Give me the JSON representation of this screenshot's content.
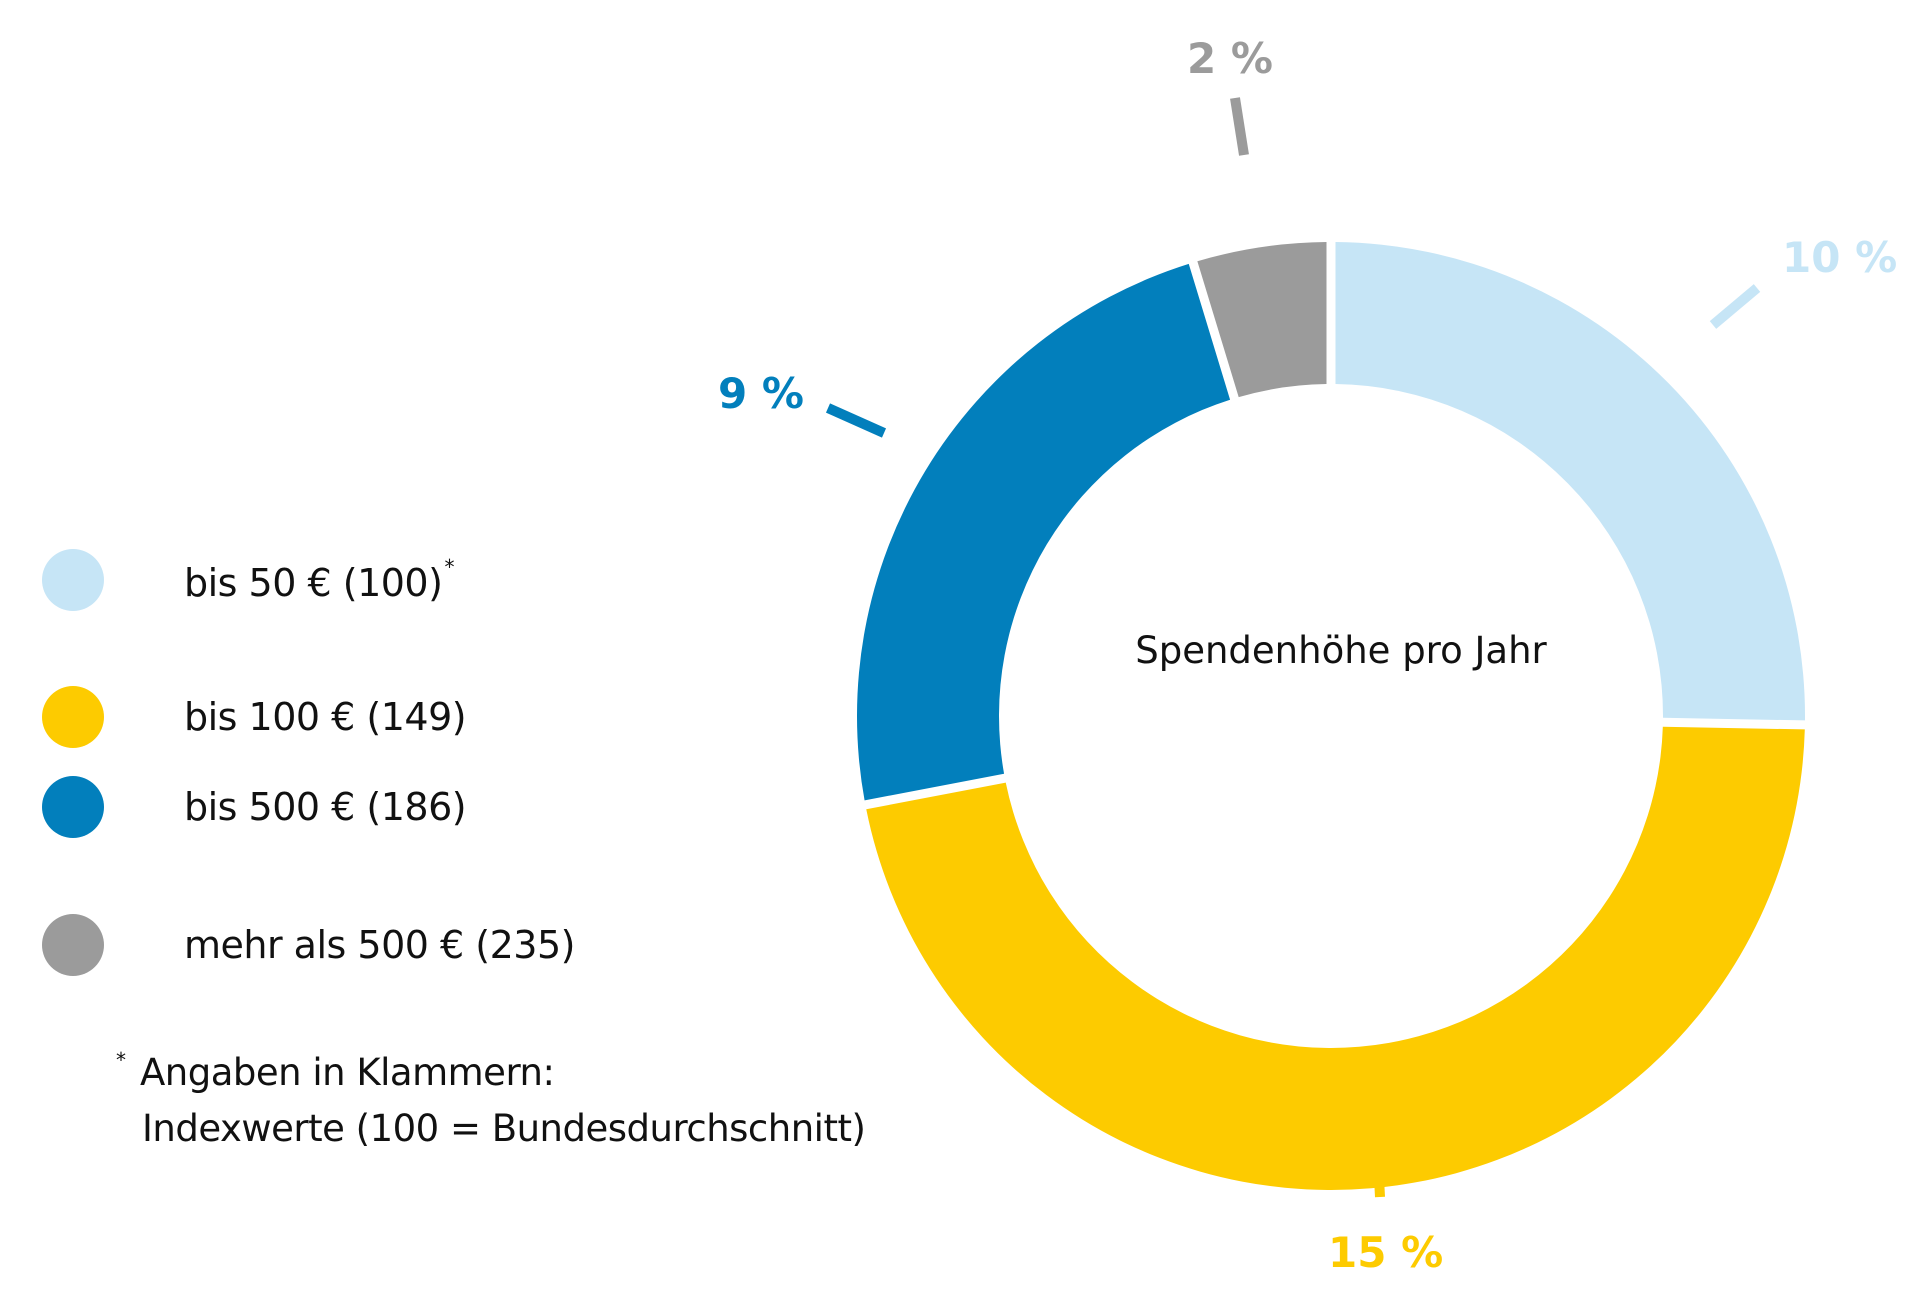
{
  "chart_data": {
    "type": "pie",
    "variant": "donut",
    "title": "Spendenhöhe pro Jahr",
    "categories": [
      "bis 50 € (100)",
      "bis 100 € (149)",
      "bis 500 € (186)",
      "mehr als 500 € (235)"
    ],
    "series": [
      {
        "name": "Spendenhöhe pro Jahr",
        "segment_share_percent": [
          25.3,
          46.7,
          23.3,
          4.7
        ],
        "labels": [
          "10 %",
          "15 %",
          "9 %",
          "2 %"
        ],
        "label_values_percent": [
          10,
          15,
          9,
          2
        ]
      }
    ],
    "colors": [
      "#c6e5f6",
      "#fdcb00",
      "#027fbc",
      "#9b9b9b"
    ],
    "legend": {
      "position": "left",
      "items": [
        {
          "label": "bis 50 € (100)",
          "superscript": "*",
          "color": "#c6e5f6"
        },
        {
          "label": "bis 100 € (149)",
          "superscript": "",
          "color": "#fdcb00"
        },
        {
          "label": "bis 500 € (186)",
          "superscript": "",
          "color": "#027fbc"
        },
        {
          "label": "mehr als 500 € (235)",
          "superscript": "",
          "color": "#9b9b9b"
        }
      ]
    },
    "footnote": {
      "marker": "*",
      "line1": "Angaben in Klammern:",
      "line2": "Indexwerte (100 = Bundesdurchschnitt)"
    }
  }
}
